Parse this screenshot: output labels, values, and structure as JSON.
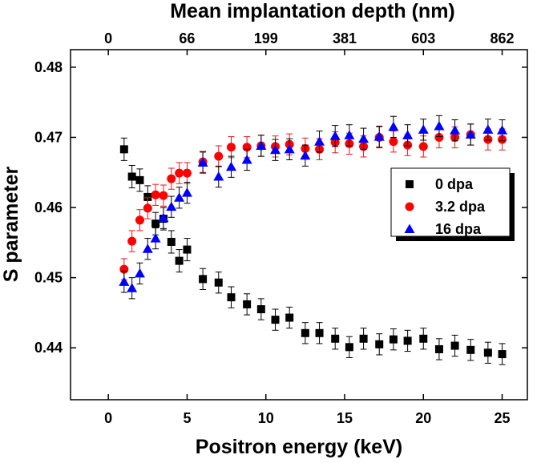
{
  "chart_data": {
    "type": "scatter",
    "title": "",
    "xlabel": "Positron energy (keV)",
    "ylabel": "S parameter",
    "top_xlabel": "Mean implantation depth (nm)",
    "xlim": [
      -2.4,
      26.6
    ],
    "ylim": [
      0.4326,
      0.4825
    ],
    "x_ticks": [
      0,
      5,
      10,
      15,
      20,
      25
    ],
    "x_tick_labels": [
      "0",
      "5",
      "10",
      "15",
      "20",
      "25"
    ],
    "y_ticks": [
      0.44,
      0.45,
      0.46,
      0.47,
      0.48
    ],
    "y_tick_labels": [
      "0.44",
      "0.45",
      "0.46",
      "0.47",
      "0.48"
    ],
    "top_ticks": [
      {
        "energy": 0,
        "label": "0"
      },
      {
        "energy": 5,
        "label": "66"
      },
      {
        "energy": 10,
        "label": "199"
      },
      {
        "energy": 15,
        "label": "381"
      },
      {
        "energy": 20,
        "label": "603"
      },
      {
        "energy": 25,
        "label": "862"
      }
    ],
    "legend_position": "center-right",
    "series": [
      {
        "name": "0 dpa",
        "marker": "square",
        "color": "#000000",
        "errcolor": "#000000",
        "points": [
          [
            1.0,
            0.4683,
            0.0016
          ],
          [
            1.5,
            0.4644,
            0.0016
          ],
          [
            2.0,
            0.4639,
            0.0016
          ],
          [
            2.5,
            0.4615,
            0.0016
          ],
          [
            3.0,
            0.4577,
            0.0016
          ],
          [
            3.5,
            0.4584,
            0.0016
          ],
          [
            4.0,
            0.4551,
            0.0016
          ],
          [
            4.5,
            0.4524,
            0.0016
          ],
          [
            5.0,
            0.454,
            0.0016
          ],
          [
            6.0,
            0.4498,
            0.0015
          ],
          [
            7.0,
            0.4493,
            0.0015
          ],
          [
            7.8,
            0.4472,
            0.0015
          ],
          [
            8.8,
            0.4462,
            0.0015
          ],
          [
            9.7,
            0.4455,
            0.0015
          ],
          [
            10.6,
            0.444,
            0.0015
          ],
          [
            11.5,
            0.4443,
            0.0015
          ],
          [
            12.5,
            0.4421,
            0.0015
          ],
          [
            13.4,
            0.4421,
            0.0015
          ],
          [
            14.4,
            0.4413,
            0.0015
          ],
          [
            15.3,
            0.4401,
            0.0015
          ],
          [
            16.2,
            0.4413,
            0.0015
          ],
          [
            17.2,
            0.4405,
            0.0015
          ],
          [
            18.1,
            0.4412,
            0.0015
          ],
          [
            19.0,
            0.441,
            0.0015
          ],
          [
            20.0,
            0.4413,
            0.0015
          ],
          [
            21.0,
            0.4398,
            0.0015
          ],
          [
            22.0,
            0.4403,
            0.0015
          ],
          [
            23.0,
            0.4397,
            0.0015
          ],
          [
            24.1,
            0.4393,
            0.0015
          ],
          [
            25.0,
            0.4391,
            0.0015
          ]
        ]
      },
      {
        "name": "3.2 dpa",
        "marker": "circle",
        "color": "#ff0000",
        "errcolor": "#e41a1c",
        "points": [
          [
            1.0,
            0.4512,
            0.0015
          ],
          [
            1.5,
            0.4552,
            0.0015
          ],
          [
            2.0,
            0.4582,
            0.0015
          ],
          [
            2.5,
            0.4599,
            0.0015
          ],
          [
            3.0,
            0.4618,
            0.0015
          ],
          [
            3.5,
            0.4617,
            0.0015
          ],
          [
            4.0,
            0.4641,
            0.0015
          ],
          [
            4.5,
            0.4649,
            0.0015
          ],
          [
            5.0,
            0.4649,
            0.0015
          ],
          [
            6.0,
            0.4665,
            0.0015
          ],
          [
            7.0,
            0.4673,
            0.0015
          ],
          [
            7.8,
            0.4686,
            0.0015
          ],
          [
            8.8,
            0.4686,
            0.0015
          ],
          [
            9.7,
            0.4688,
            0.0015
          ],
          [
            10.6,
            0.4687,
            0.0015
          ],
          [
            11.5,
            0.469,
            0.0015
          ],
          [
            12.5,
            0.4684,
            0.0015
          ],
          [
            13.4,
            0.4683,
            0.0015
          ],
          [
            14.4,
            0.4693,
            0.0015
          ],
          [
            15.3,
            0.4691,
            0.0015
          ],
          [
            16.2,
            0.4687,
            0.0015
          ],
          [
            17.2,
            0.47,
            0.0015
          ],
          [
            18.1,
            0.4694,
            0.0015
          ],
          [
            19.0,
            0.4689,
            0.0015
          ],
          [
            20.0,
            0.4687,
            0.0015
          ],
          [
            21.0,
            0.47,
            0.0015
          ],
          [
            22.0,
            0.47,
            0.0015
          ],
          [
            23.0,
            0.4704,
            0.0015
          ],
          [
            24.1,
            0.4697,
            0.0015
          ],
          [
            25.0,
            0.4697,
            0.0015
          ]
        ]
      },
      {
        "name": "16 dpa",
        "marker": "triangle",
        "color": "#0000ff",
        "errcolor": "#000000",
        "points": [
          [
            1.0,
            0.4494,
            0.0015
          ],
          [
            1.5,
            0.4485,
            0.0015
          ],
          [
            2.0,
            0.4506,
            0.0015
          ],
          [
            2.5,
            0.4541,
            0.0015
          ],
          [
            3.0,
            0.4556,
            0.0015
          ],
          [
            3.5,
            0.4585,
            0.0015
          ],
          [
            4.0,
            0.4601,
            0.0015
          ],
          [
            4.5,
            0.4614,
            0.0015
          ],
          [
            5.0,
            0.4621,
            0.0015
          ],
          [
            6.0,
            0.4664,
            0.0015
          ],
          [
            7.0,
            0.4644,
            0.0015
          ],
          [
            7.8,
            0.4658,
            0.0015
          ],
          [
            8.8,
            0.4668,
            0.0015
          ],
          [
            9.7,
            0.4688,
            0.0015
          ],
          [
            10.6,
            0.4682,
            0.0015
          ],
          [
            11.5,
            0.4683,
            0.0015
          ],
          [
            12.5,
            0.4674,
            0.0015
          ],
          [
            13.4,
            0.4694,
            0.0015
          ],
          [
            14.4,
            0.4702,
            0.0015
          ],
          [
            15.3,
            0.4703,
            0.0015
          ],
          [
            16.2,
            0.4698,
            0.0015
          ],
          [
            17.2,
            0.4701,
            0.0015
          ],
          [
            18.1,
            0.4715,
            0.0015
          ],
          [
            19.0,
            0.4703,
            0.0015
          ],
          [
            20.0,
            0.4711,
            0.0015
          ],
          [
            21.0,
            0.4716,
            0.0015
          ],
          [
            22.0,
            0.471,
            0.0015
          ],
          [
            23.0,
            0.4704,
            0.0015
          ],
          [
            24.1,
            0.4711,
            0.0015
          ],
          [
            25.0,
            0.471,
            0.0015
          ]
        ]
      }
    ]
  }
}
